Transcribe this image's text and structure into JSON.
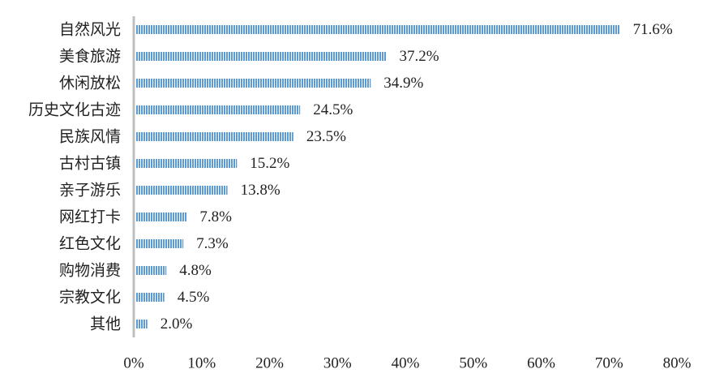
{
  "chart_data": {
    "type": "bar",
    "orientation": "horizontal",
    "categories": [
      "自然风光",
      "美食旅游",
      "休闲放松",
      "历史文化古迹",
      "民族风情",
      "古村古镇",
      "亲子游乐",
      "网红打卡",
      "红色文化",
      "购物消费",
      "宗教文化",
      "其他"
    ],
    "values": [
      71.6,
      37.2,
      34.9,
      24.5,
      23.5,
      15.2,
      13.8,
      7.8,
      7.3,
      4.8,
      4.5,
      2.0
    ],
    "value_labels": [
      "71.6%",
      "37.2%",
      "34.9%",
      "24.5%",
      "23.5%",
      "15.2%",
      "13.8%",
      "7.8%",
      "7.3%",
      "4.8%",
      "4.5%",
      "2.0%"
    ],
    "x_ticks": [
      0,
      10,
      20,
      30,
      40,
      50,
      60,
      70,
      80
    ],
    "x_tick_labels": [
      "0%",
      "10%",
      "20%",
      "30%",
      "40%",
      "50%",
      "60%",
      "70%",
      "80%"
    ],
    "xlim": [
      0,
      80
    ],
    "grid": false,
    "bar_color": "#5b9bd5",
    "bar_pattern": "vertical-stripes",
    "axis_color": "#bfbfbf",
    "title": "",
    "xlabel": "",
    "ylabel": ""
  }
}
